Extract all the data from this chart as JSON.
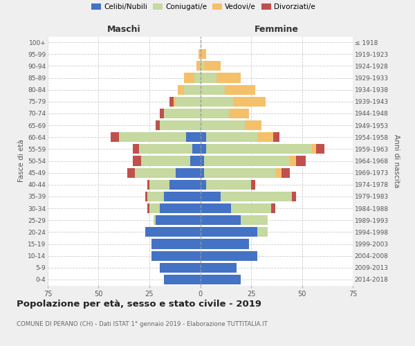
{
  "age_groups": [
    "0-4",
    "5-9",
    "10-14",
    "15-19",
    "20-24",
    "25-29",
    "30-34",
    "35-39",
    "40-44",
    "45-49",
    "50-54",
    "55-59",
    "60-64",
    "65-69",
    "70-74",
    "75-79",
    "80-84",
    "85-89",
    "90-94",
    "95-99",
    "100+"
  ],
  "birth_years": [
    "2014-2018",
    "2009-2013",
    "2004-2008",
    "1999-2003",
    "1994-1998",
    "1989-1993",
    "1984-1988",
    "1979-1983",
    "1974-1978",
    "1969-1973",
    "1964-1968",
    "1959-1963",
    "1954-1958",
    "1949-1953",
    "1944-1948",
    "1939-1943",
    "1934-1938",
    "1929-1933",
    "1924-1928",
    "1919-1923",
    "≤ 1918"
  ],
  "male": {
    "celibi": [
      18,
      20,
      24,
      24,
      27,
      22,
      20,
      18,
      15,
      12,
      5,
      4,
      7,
      0,
      0,
      0,
      0,
      0,
      0,
      0,
      0
    ],
    "coniugati": [
      0,
      0,
      0,
      0,
      0,
      1,
      5,
      8,
      10,
      20,
      24,
      26,
      33,
      20,
      18,
      12,
      8,
      3,
      0,
      0,
      0
    ],
    "vedovi": [
      0,
      0,
      0,
      0,
      0,
      0,
      0,
      0,
      0,
      0,
      0,
      0,
      0,
      0,
      0,
      1,
      3,
      5,
      2,
      1,
      0
    ],
    "divorziati": [
      0,
      0,
      0,
      0,
      0,
      0,
      1,
      1,
      1,
      4,
      4,
      3,
      4,
      2,
      2,
      2,
      0,
      0,
      0,
      0,
      0
    ]
  },
  "female": {
    "nubili": [
      20,
      18,
      28,
      24,
      28,
      20,
      15,
      10,
      3,
      2,
      2,
      3,
      3,
      0,
      0,
      0,
      0,
      0,
      0,
      0,
      0
    ],
    "coniugate": [
      0,
      0,
      0,
      0,
      5,
      13,
      20,
      35,
      22,
      35,
      42,
      52,
      25,
      22,
      14,
      16,
      12,
      8,
      2,
      0,
      0
    ],
    "vedove": [
      0,
      0,
      0,
      0,
      0,
      0,
      0,
      0,
      0,
      3,
      3,
      2,
      8,
      8,
      10,
      16,
      15,
      12,
      8,
      3,
      0
    ],
    "divorziate": [
      0,
      0,
      0,
      0,
      0,
      0,
      2,
      2,
      2,
      4,
      5,
      4,
      3,
      0,
      0,
      0,
      0,
      0,
      0,
      0,
      0
    ]
  },
  "colors": {
    "celibi": "#4472C4",
    "coniugati": "#C5D9A0",
    "vedovi": "#F5C06A",
    "divorziati": "#C0504D"
  },
  "xlim": 75,
  "title": "Popolazione per età, sesso e stato civile - 2019",
  "subtitle": "COMUNE DI PERANO (CH) - Dati ISTAT 1° gennaio 2019 - Elaborazione TUTTITALIA.IT",
  "ylabel_left": "Fasce di età",
  "ylabel_right": "Anni di nascita",
  "xlabel_left": "Maschi",
  "xlabel_right": "Femmine",
  "bg_color": "#efefef",
  "plot_bg_color": "#ffffff"
}
